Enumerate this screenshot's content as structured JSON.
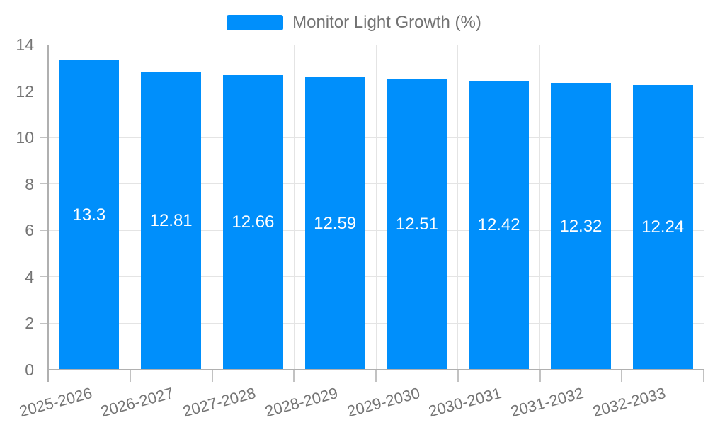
{
  "chart_data": {
    "type": "bar",
    "title": "Monitor Light Growth (%)",
    "legend": {
      "label": "Monitor Light Growth (%)",
      "position": "top"
    },
    "categories": [
      "2025-2026",
      "2026-2027",
      "2027-2028",
      "2028-2029",
      "2029-2030",
      "2030-2031",
      "2031-2032",
      "2032-2033"
    ],
    "series": [
      {
        "name": "Monitor Light Growth (%)",
        "values": [
          13.3,
          12.81,
          12.66,
          12.59,
          12.51,
          12.42,
          12.32,
          12.24
        ]
      }
    ],
    "bar_value_labels": [
      "13.3",
      "12.81",
      "12.66",
      "12.59",
      "12.51",
      "12.42",
      "12.32",
      "12.24"
    ],
    "xlabel": "",
    "ylabel": "",
    "ylim": [
      0,
      14
    ],
    "yticks": [
      0,
      2,
      4,
      6,
      8,
      10,
      12,
      14
    ],
    "grid": true,
    "x_label_rotation_deg": -15,
    "colors": {
      "bar": "#008FFB",
      "bar_label": "#ffffff",
      "axis_text": "#757575",
      "legend_text": "#727272",
      "gridline": "#e4e4e4",
      "axis_line": "#b0b0b0",
      "tick": "#c2c2c2",
      "background": "#ffffff"
    }
  }
}
